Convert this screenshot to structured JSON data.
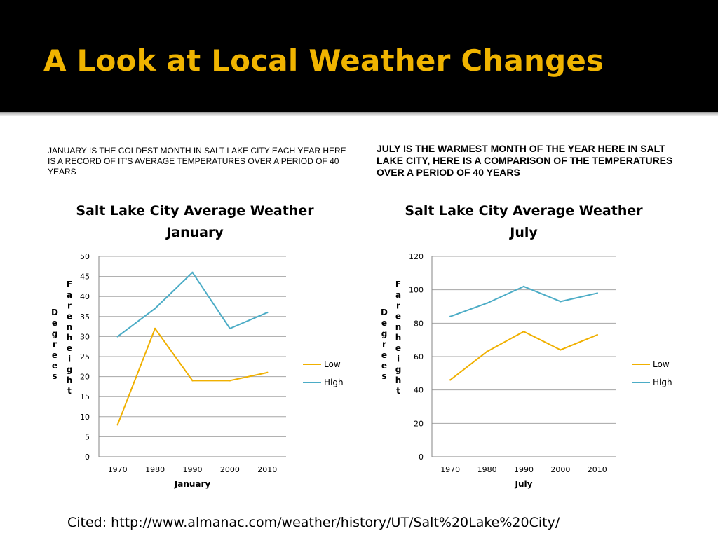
{
  "slide": {
    "title": "A Look at Local Weather Changes",
    "caption_left": "JANUARY IS THE COLDEST MONTH IN SALT LAKE CITY EACH YEAR HERE IS A RECORD OF IT’S AVERAGE TEMPERATURES OVER A PERIOD OF 40 YEARS",
    "caption_right": "JULY IS THE WARMEST MONTH OF THE YEAR HERE IN SALT LAKE CITY, HERE IS A COMPARISON OF THE TEMPERATURES OVER A PERIOD OF 40 YEARS",
    "citation": "Cited: http://www.almanac.com/weather/history/UT/Salt%20Lake%20City/"
  },
  "colors": {
    "low": "#f0b000",
    "high": "#4bacc6",
    "title": "#f0b400",
    "grid": "#a6a6a6"
  },
  "chart_data": [
    {
      "type": "line",
      "title_line1": "Salt Lake City Average Weather",
      "title_line2": "January",
      "categories": [
        "1970",
        "1980",
        "1990",
        "2000",
        "2010"
      ],
      "series": [
        {
          "name": "Low",
          "values": [
            8,
            32,
            19,
            19,
            21
          ]
        },
        {
          "name": "High",
          "values": [
            30,
            37,
            46,
            32,
            36
          ]
        }
      ],
      "xlabel": "January",
      "ylabel_left": "Degrees",
      "ylabel_right": "Farenheight",
      "ylim": [
        0,
        50
      ],
      "ytick_step": 5,
      "grid": true,
      "legend": "right"
    },
    {
      "type": "line",
      "title_line1": "Salt Lake City Average Weather",
      "title_line2": "July",
      "categories": [
        "1970",
        "1980",
        "1990",
        "2000",
        "2010"
      ],
      "series": [
        {
          "name": "Low",
          "values": [
            46,
            63,
            75,
            64,
            73
          ]
        },
        {
          "name": "High",
          "values": [
            84,
            92,
            102,
            93,
            98
          ]
        }
      ],
      "xlabel": "July",
      "ylabel_left": "Degrees",
      "ylabel_right": "Farenheight",
      "ylim": [
        0,
        120
      ],
      "ytick_step": 20,
      "grid": true,
      "legend": "right"
    }
  ]
}
